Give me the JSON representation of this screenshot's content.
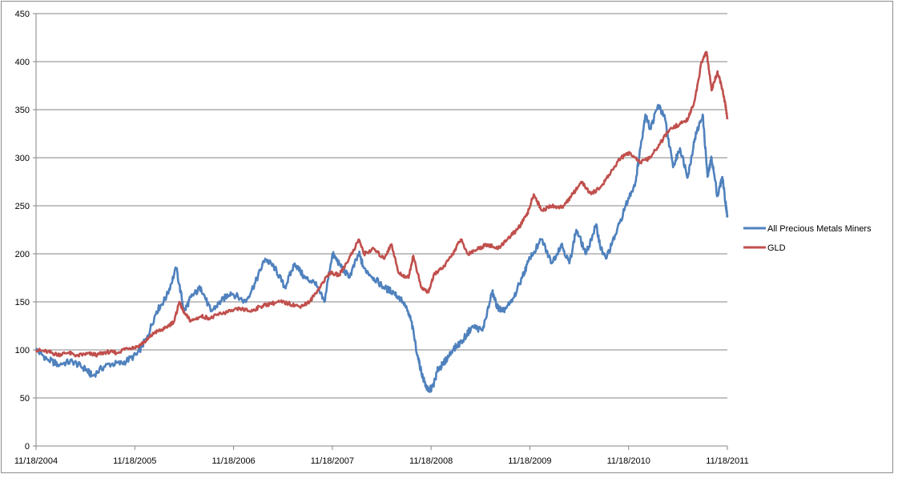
{
  "chart_data": {
    "type": "line",
    "title": "",
    "xlabel": "",
    "ylabel": "",
    "ylim": [
      0,
      450
    ],
    "y_ticks": [
      "0",
      "50",
      "100",
      "150",
      "200",
      "250",
      "300",
      "350",
      "400",
      "450"
    ],
    "x_tick_labels": [
      "11/18/2004",
      "11/18/2005",
      "11/18/2006",
      "11/18/2007",
      "11/18/2008",
      "11/18/2009",
      "11/18/2010",
      "11/18/2011"
    ],
    "x_range_years": [
      2004.88,
      2011.88
    ],
    "grid": "horizontal",
    "legend_position": "right",
    "series": [
      {
        "name": "All Precious Metals Miners",
        "color": "#4f81bd",
        "points": [
          [
            2004.88,
            100
          ],
          [
            2005.0,
            90
          ],
          [
            2005.1,
            85
          ],
          [
            2005.25,
            88
          ],
          [
            2005.38,
            80
          ],
          [
            2005.45,
            73
          ],
          [
            2005.6,
            85
          ],
          [
            2005.75,
            86
          ],
          [
            2005.9,
            95
          ],
          [
            2006.0,
            112
          ],
          [
            2006.1,
            140
          ],
          [
            2006.2,
            155
          ],
          [
            2006.3,
            185
          ],
          [
            2006.38,
            140
          ],
          [
            2006.45,
            155
          ],
          [
            2006.55,
            165
          ],
          [
            2006.65,
            140
          ],
          [
            2006.75,
            150
          ],
          [
            2006.85,
            160
          ],
          [
            2007.0,
            150
          ],
          [
            2007.1,
            170
          ],
          [
            2007.2,
            195
          ],
          [
            2007.3,
            185
          ],
          [
            2007.4,
            165
          ],
          [
            2007.5,
            190
          ],
          [
            2007.6,
            175
          ],
          [
            2007.7,
            170
          ],
          [
            2007.8,
            150
          ],
          [
            2007.88,
            200
          ],
          [
            2007.95,
            190
          ],
          [
            2008.05,
            175
          ],
          [
            2008.15,
            200
          ],
          [
            2008.2,
            185
          ],
          [
            2008.3,
            175
          ],
          [
            2008.4,
            165
          ],
          [
            2008.5,
            160
          ],
          [
            2008.6,
            150
          ],
          [
            2008.68,
            130
          ],
          [
            2008.75,
            90
          ],
          [
            2008.8,
            70
          ],
          [
            2008.85,
            57
          ],
          [
            2008.9,
            62
          ],
          [
            2008.95,
            80
          ],
          [
            2009.0,
            85
          ],
          [
            2009.1,
            100
          ],
          [
            2009.2,
            110
          ],
          [
            2009.3,
            125
          ],
          [
            2009.4,
            120
          ],
          [
            2009.5,
            160
          ],
          [
            2009.55,
            145
          ],
          [
            2009.6,
            140
          ],
          [
            2009.7,
            150
          ],
          [
            2009.8,
            175
          ],
          [
            2009.88,
            195
          ],
          [
            2010.0,
            215
          ],
          [
            2010.1,
            190
          ],
          [
            2010.2,
            210
          ],
          [
            2010.28,
            190
          ],
          [
            2010.35,
            225
          ],
          [
            2010.45,
            200
          ],
          [
            2010.55,
            230
          ],
          [
            2010.6,
            205
          ],
          [
            2010.65,
            195
          ],
          [
            2010.75,
            220
          ],
          [
            2010.85,
            250
          ],
          [
            2010.95,
            275
          ],
          [
            2011.0,
            310
          ],
          [
            2011.05,
            345
          ],
          [
            2011.1,
            330
          ],
          [
            2011.18,
            355
          ],
          [
            2011.25,
            340
          ],
          [
            2011.33,
            290
          ],
          [
            2011.4,
            310
          ],
          [
            2011.48,
            280
          ],
          [
            2011.55,
            320
          ],
          [
            2011.63,
            345
          ],
          [
            2011.68,
            280
          ],
          [
            2011.72,
            300
          ],
          [
            2011.78,
            260
          ],
          [
            2011.83,
            280
          ],
          [
            2011.86,
            255
          ],
          [
            2011.88,
            238
          ]
        ]
      },
      {
        "name": "GLD",
        "color": "#c0504d",
        "points": [
          [
            2004.88,
            100
          ],
          [
            2005.0,
            98
          ],
          [
            2005.1,
            95
          ],
          [
            2005.2,
            97
          ],
          [
            2005.3,
            94
          ],
          [
            2005.4,
            96
          ],
          [
            2005.5,
            95
          ],
          [
            2005.6,
            98
          ],
          [
            2005.7,
            97
          ],
          [
            2005.8,
            102
          ],
          [
            2005.9,
            103
          ],
          [
            2006.0,
            110
          ],
          [
            2006.08,
            118
          ],
          [
            2006.18,
            122
          ],
          [
            2006.28,
            130
          ],
          [
            2006.33,
            150
          ],
          [
            2006.38,
            138
          ],
          [
            2006.45,
            130
          ],
          [
            2006.55,
            135
          ],
          [
            2006.65,
            133
          ],
          [
            2006.75,
            138
          ],
          [
            2006.85,
            140
          ],
          [
            2006.95,
            143
          ],
          [
            2007.05,
            140
          ],
          [
            2007.15,
            145
          ],
          [
            2007.25,
            148
          ],
          [
            2007.35,
            150
          ],
          [
            2007.45,
            148
          ],
          [
            2007.55,
            145
          ],
          [
            2007.65,
            150
          ],
          [
            2007.75,
            165
          ],
          [
            2007.85,
            180
          ],
          [
            2007.95,
            178
          ],
          [
            2008.05,
            195
          ],
          [
            2008.15,
            215
          ],
          [
            2008.2,
            200
          ],
          [
            2008.3,
            205
          ],
          [
            2008.4,
            195
          ],
          [
            2008.48,
            210
          ],
          [
            2008.55,
            180
          ],
          [
            2008.65,
            175
          ],
          [
            2008.7,
            198
          ],
          [
            2008.78,
            165
          ],
          [
            2008.85,
            160
          ],
          [
            2008.92,
            180
          ],
          [
            2009.0,
            185
          ],
          [
            2009.1,
            200
          ],
          [
            2009.18,
            215
          ],
          [
            2009.25,
            200
          ],
          [
            2009.35,
            205
          ],
          [
            2009.45,
            210
          ],
          [
            2009.55,
            205
          ],
          [
            2009.65,
            215
          ],
          [
            2009.75,
            225
          ],
          [
            2009.85,
            240
          ],
          [
            2009.92,
            262
          ],
          [
            2010.0,
            245
          ],
          [
            2010.1,
            250
          ],
          [
            2010.2,
            248
          ],
          [
            2010.3,
            260
          ],
          [
            2010.4,
            275
          ],
          [
            2010.5,
            262
          ],
          [
            2010.6,
            270
          ],
          [
            2010.7,
            285
          ],
          [
            2010.8,
            300
          ],
          [
            2010.9,
            305
          ],
          [
            2011.0,
            295
          ],
          [
            2011.1,
            300
          ],
          [
            2011.2,
            315
          ],
          [
            2011.3,
            330
          ],
          [
            2011.4,
            335
          ],
          [
            2011.48,
            340
          ],
          [
            2011.55,
            360
          ],
          [
            2011.62,
            400
          ],
          [
            2011.67,
            410
          ],
          [
            2011.72,
            370
          ],
          [
            2011.78,
            390
          ],
          [
            2011.82,
            375
          ],
          [
            2011.86,
            355
          ],
          [
            2011.88,
            340
          ]
        ]
      }
    ]
  }
}
